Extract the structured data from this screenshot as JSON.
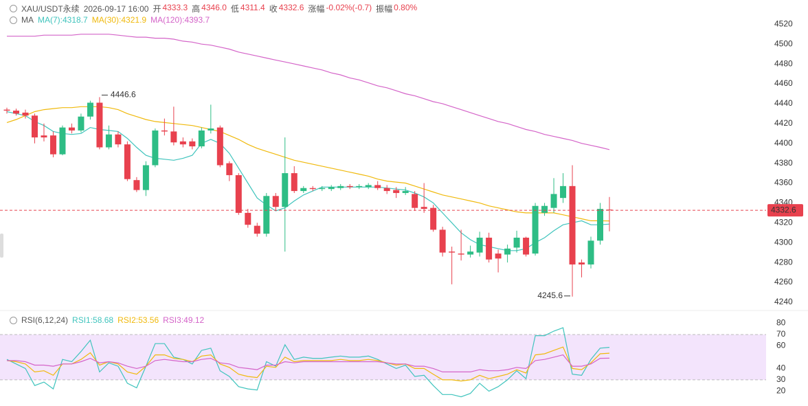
{
  "chart_data": {
    "type": "candlestick",
    "header": {
      "symbol": "XAU/USDT永续",
      "time": "2026-09-17 16:00",
      "items": [
        {
          "label": "开",
          "value": "4333.3"
        },
        {
          "label": "高",
          "value": "4346.0"
        },
        {
          "label": "低",
          "value": "4311.4"
        },
        {
          "label": "收",
          "value": "4332.6"
        },
        {
          "label": "涨幅",
          "value": "-0.02%(-0.7)"
        },
        {
          "label": "振幅",
          "value": "0.80%"
        }
      ]
    },
    "up_color": "#2ebd85",
    "down_color": "#e8414e",
    "open": [
      4434,
      4433,
      4431,
      4428,
      4408,
      4408,
      4389,
      4416,
      4413,
      4427,
      4441,
      4396,
      4409,
      4399,
      4363,
      4353,
      4378,
      4413,
      4412,
      4402,
      4402,
      4397,
      4413,
      4416,
      4380,
      4368,
      4330,
      4317,
      4309,
      4347,
      4336,
      4370,
      4352,
      4355,
      4354,
      4354,
      4355,
      4357,
      4356,
      4356,
      4358,
      4355,
      4353,
      4350,
      4349,
      4336,
      4335,
      4313,
      4291,
      4289,
      4288,
      4290,
      4305,
      4289,
      4288,
      4295,
      4305,
      4289,
      4330,
      4335,
      4345,
      4357,
      4280,
      4278,
      4302,
      4333.3
    ],
    "high": [
      4436,
      4435,
      4434,
      4430,
      4420,
      4412,
      4418,
      4420,
      4430,
      4443,
      4446.6,
      4418,
      4412,
      4402,
      4366,
      4382,
      4415,
      4425,
      4437,
      4406,
      4405,
      4416,
      4439,
      4418,
      4382,
      4370,
      4334,
      4320,
      4350,
      4350,
      4406,
      4377,
      4357,
      4357,
      4357,
      4358,
      4359,
      4359,
      4359,
      4360,
      4362,
      4358,
      4356,
      4356,
      4352,
      4360,
      4338,
      4316,
      4296,
      4313,
      4297,
      4311,
      4310,
      4293,
      4298,
      4312,
      4306,
      4340,
      4340,
      4365,
      4370,
      4378,
      4283,
      4306,
      4340,
      4346.0
    ],
    "low": [
      4430,
      4428,
      4425,
      4400,
      4402,
      4386,
      4388,
      4410,
      4411,
      4424,
      4394,
      4394,
      4396,
      4362,
      4351,
      4347,
      4376,
      4408,
      4398,
      4396,
      4394,
      4395,
      4410,
      4376,
      4362,
      4328,
      4315,
      4306,
      4306,
      4332,
      4291,
      4350,
      4350,
      4352,
      4352,
      4352,
      4353,
      4354,
      4354,
      4354,
      4353,
      4349,
      4345,
      4348,
      4332,
      4330,
      4311,
      4286,
      4258,
      4282,
      4285,
      4286,
      4280,
      4270,
      4280,
      4290,
      4286,
      4287,
      4327,
      4330,
      4340,
      4245.6,
      4265,
      4274,
      4298,
      4311.4
    ],
    "close": [
      4433,
      4430,
      4428,
      4406,
      4406,
      4389,
      4416,
      4413,
      4427,
      4441,
      4396,
      4409,
      4399,
      4364,
      4353,
      4378,
      4413,
      4412,
      4401,
      4399,
      4397,
      4413,
      4415,
      4378,
      4368,
      4330,
      4318,
      4309,
      4347,
      4336,
      4370,
      4352,
      4355,
      4354,
      4355,
      4356,
      4357,
      4356,
      4357,
      4358,
      4355,
      4352,
      4350,
      4352,
      4335,
      4334,
      4313,
      4290,
      4290,
      4288,
      4291,
      4305,
      4283,
      4284,
      4294,
      4305,
      4288,
      4337,
      4337,
      4349,
      4357,
      4278,
      4278,
      4302,
      4334,
      4332.6
    ],
    "ma_label": "MA",
    "ma": [
      {
        "name": "MA(7):4318.7",
        "color": "#3fc4bd",
        "values": [
          4432,
          4430,
          4428,
          4422,
          4418,
          4412,
          4410,
          4409,
          4410,
          4416,
          4414,
          4413,
          4412,
          4405,
          4396,
          4388,
          4385,
          4384,
          4383,
          4385,
          4388,
          4400,
          4404,
          4400,
          4390,
          4375,
          4360,
          4345,
          4338,
          4332,
          4335,
          4342,
          4348,
          4352,
          4356,
          4356,
          4356,
          4356,
          4356,
          4356,
          4356,
          4355,
          4354,
          4353,
          4350,
          4346,
          4340,
          4330,
          4320,
          4310,
          4303,
          4298,
          4296,
          4294,
          4292,
          4292,
          4294,
          4300,
          4305,
          4312,
          4318,
          4320,
          4322,
          4318,
          4318,
          4318.7
        ]
      },
      {
        "name": "MA(30):4321.9",
        "color": "#f0b90b",
        "values": [
          4421,
          4424,
          4428,
          4432,
          4434,
          4435,
          4436,
          4436,
          4437,
          4437,
          4437,
          4436,
          4434,
          4430,
          4427,
          4424,
          4422,
          4421,
          4420,
          4419,
          4418,
          4416,
          4414,
          4412,
          4408,
          4404,
          4399,
          4395,
          4392,
          4389,
          4386,
          4383,
          4381,
          4379,
          4377,
          4375,
          4373,
          4371,
          4369,
          4367,
          4364,
          4362,
          4361,
          4360,
          4357,
          4354,
          4351,
          4348,
          4346,
          4344,
          4342,
          4340,
          4337,
          4335,
          4333,
          4331,
          4330,
          4330,
          4330,
          4330,
          4328,
          4326,
          4324,
          4322,
          4322,
          4321.9
        ]
      },
      {
        "name": "MA(120):4393.7",
        "color": "#d463c8",
        "values": [
          4508,
          4508,
          4508,
          4508,
          4509,
          4509,
          4509,
          4509,
          4510,
          4510,
          4510,
          4510,
          4509,
          4508,
          4507,
          4507,
          4506,
          4506,
          4505,
          4503,
          4502,
          4500,
          4499,
          4497,
          4495,
          4492,
          4490,
          4488,
          4486,
          4484,
          4482,
          4480,
          4478,
          4476,
          4474,
          4471,
          4469,
          4466,
          4464,
          4461,
          4458,
          4456,
          4453,
          4450,
          4448,
          4445,
          4442,
          4440,
          4437,
          4434,
          4431,
          4428,
          4425,
          4422,
          4420,
          4417,
          4414,
          4412,
          4409,
          4407,
          4405,
          4403,
          4400,
          4398,
          4396,
          4393.7
        ]
      }
    ],
    "ylim": [
      4233,
      4541
    ],
    "yticks": [
      4240,
      4260,
      4280,
      4300,
      4320,
      4340,
      4360,
      4380,
      4400,
      4420,
      4440,
      4460,
      4480,
      4500,
      4520
    ],
    "rsi": {
      "label": "RSI(6,12,24)",
      "ylim": [
        7.5,
        89.4
      ],
      "yticks": [
        20,
        30,
        40,
        60,
        70,
        80
      ],
      "band": [
        30,
        70
      ],
      "band_color": "#f3e4fc",
      "series": [
        {
          "name": "RSI1:58.68",
          "color": "#3fc4bd",
          "values": [
            48,
            44,
            40,
            25,
            28,
            22,
            48,
            46,
            55,
            65,
            37,
            45,
            42,
            27,
            23,
            42,
            62,
            62,
            50,
            48,
            44,
            56,
            58,
            38,
            33,
            24,
            22,
            21,
            46,
            42,
            61,
            48,
            50,
            49,
            49,
            50,
            51,
            50,
            50,
            51,
            48,
            44,
            40,
            43,
            33,
            34,
            25,
            17,
            17,
            15,
            18,
            27,
            20,
            24,
            30,
            38,
            31,
            69,
            69,
            73,
            76,
            35,
            34,
            48,
            58,
            58.68
          ]
        },
        {
          "name": "RSI2:53.56",
          "color": "#f0b90b",
          "values": [
            47,
            46,
            44,
            37,
            38,
            34,
            44,
            44,
            48,
            54,
            43,
            46,
            44,
            37,
            35,
            42,
            52,
            52,
            49,
            48,
            46,
            51,
            52,
            44,
            41,
            35,
            33,
            32,
            42,
            41,
            50,
            46,
            47,
            47,
            47,
            47,
            48,
            47,
            47,
            48,
            47,
            45,
            43,
            44,
            40,
            40,
            35,
            30,
            30,
            29,
            30,
            34,
            31,
            33,
            35,
            39,
            36,
            52,
            53,
            56,
            59,
            40,
            39,
            45,
            53,
            53.56
          ]
        },
        {
          "name": "RSI3:49.12",
          "color": "#d463c8",
          "values": [
            47,
            47,
            46,
            43,
            43,
            42,
            44,
            44,
            46,
            49,
            45,
            46,
            45,
            42,
            40,
            42,
            47,
            48,
            47,
            46,
            46,
            48,
            49,
            45,
            44,
            41,
            40,
            39,
            43,
            43,
            46,
            45,
            46,
            46,
            46,
            46,
            46,
            46,
            46,
            46,
            46,
            45,
            44,
            44,
            42,
            42,
            40,
            37,
            37,
            37,
            37,
            39,
            38,
            38,
            39,
            41,
            40,
            47,
            48,
            50,
            52,
            42,
            42,
            44,
            49,
            49.12
          ]
        }
      ]
    }
  }
}
